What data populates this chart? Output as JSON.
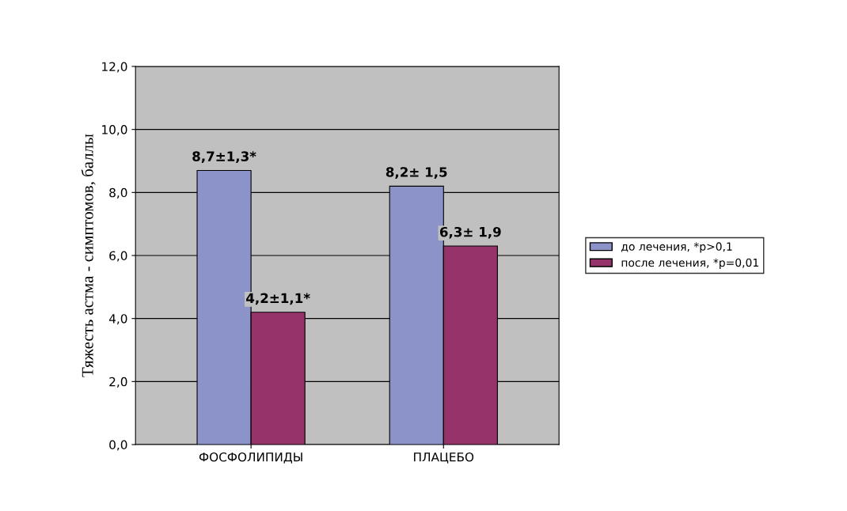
{
  "chart_data": {
    "type": "bar",
    "ylabel": "Тяжесть астма - симптомов, баллы",
    "categories": [
      "ФОСФОЛИПИДЫ",
      "ПЛАЦЕБО"
    ],
    "series": [
      {
        "name": "до лечения, *p>0,1",
        "color": "#8b93c8",
        "values": [
          8.7,
          8.2
        ],
        "value_labels": [
          "8,7±1,3*",
          "8,2± 1,5"
        ]
      },
      {
        "name": "после лечения, *p=0,01",
        "color": "#95336a",
        "values": [
          4.2,
          6.3
        ],
        "value_labels": [
          "4,2±1,1*",
          "6,3± 1,9"
        ]
      }
    ],
    "ylim": [
      0,
      12
    ],
    "yticks": [
      {
        "value": 0,
        "label": "0,0"
      },
      {
        "value": 2,
        "label": "2,0"
      },
      {
        "value": 4,
        "label": "4,0"
      },
      {
        "value": 6,
        "label": "6,0"
      },
      {
        "value": 8,
        "label": "8,0"
      },
      {
        "value": 10,
        "label": "10,0"
      },
      {
        "value": 12,
        "label": "12,0"
      }
    ],
    "grid": "y",
    "legend": "right"
  }
}
